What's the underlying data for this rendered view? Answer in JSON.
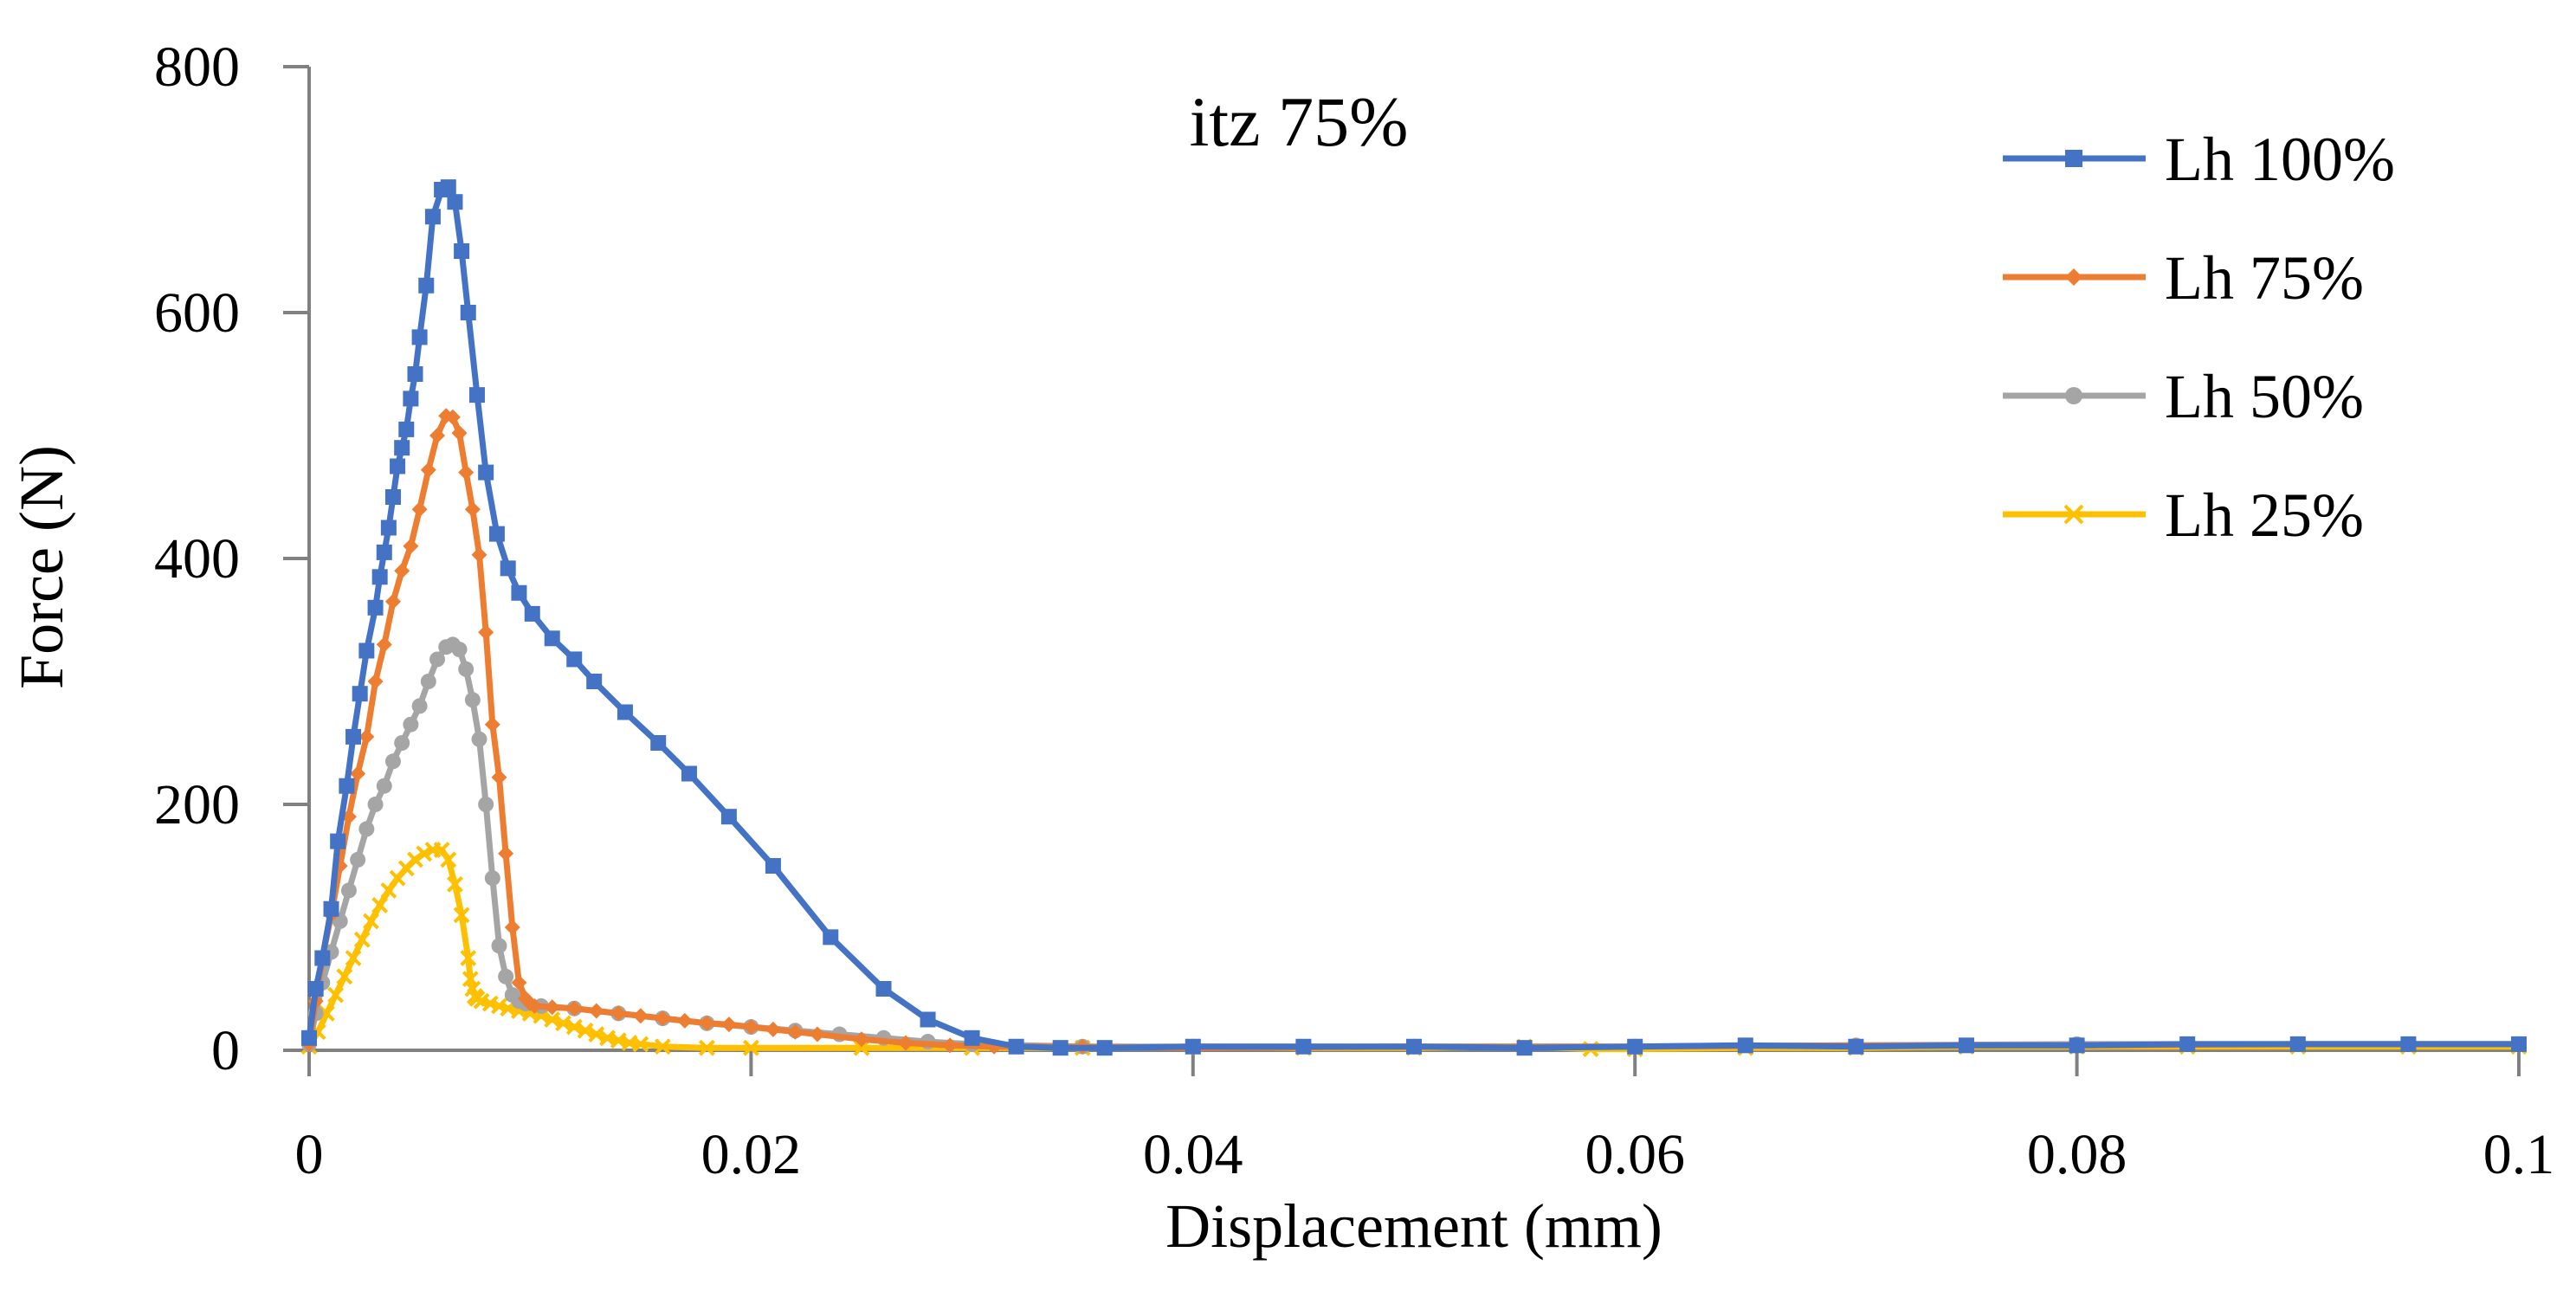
{
  "chart_data": {
    "type": "line",
    "title": "itz 75%",
    "xlabel": "Displacement (mm)",
    "ylabel": "Force (N)",
    "xlim": [
      0,
      0.1
    ],
    "ylim": [
      0,
      800
    ],
    "x_ticks": [
      0,
      0.02,
      0.04,
      0.06,
      0.08,
      0.1
    ],
    "x_tick_labels": [
      "0",
      "0.02",
      "0.04",
      "0.06",
      "0.08",
      "0.1"
    ],
    "y_ticks": [
      0,
      200,
      400,
      600,
      800
    ],
    "y_tick_labels": [
      "0",
      "200",
      "400",
      "600",
      "800"
    ],
    "grid": false,
    "legend_position": "top-right",
    "series": [
      {
        "name": "Lh 100%",
        "color": "#4472C4",
        "marker": "square",
        "x": [
          0,
          0.0003,
          0.0006,
          0.001,
          0.0013,
          0.0017,
          0.002,
          0.0023,
          0.0026,
          0.003,
          0.0032,
          0.0034,
          0.0036,
          0.0038,
          0.004,
          0.0042,
          0.0044,
          0.0046,
          0.0048,
          0.005,
          0.0053,
          0.0056,
          0.006,
          0.0063,
          0.0066,
          0.0069,
          0.0072,
          0.0076,
          0.008,
          0.0085,
          0.009,
          0.0095,
          0.0101,
          0.011,
          0.012,
          0.0129,
          0.0143,
          0.0158,
          0.0172,
          0.019,
          0.021,
          0.0236,
          0.026,
          0.028,
          0.03,
          0.032,
          0.034,
          0.036,
          0.04,
          0.045,
          0.05,
          0.055,
          0.06,
          0.065,
          0.07,
          0.075,
          0.08,
          0.085,
          0.09,
          0.095,
          0.1
        ],
        "y": [
          10,
          50,
          75,
          115,
          170,
          215,
          255,
          290,
          325,
          360,
          385,
          405,
          425,
          450,
          475,
          490,
          505,
          530,
          550,
          580,
          622,
          678,
          700,
          702,
          690,
          650,
          600,
          533,
          470,
          420,
          392,
          372,
          355,
          335,
          318,
          300,
          275,
          250,
          225,
          190,
          150,
          92,
          50,
          25,
          10,
          3,
          2,
          2,
          3,
          3,
          3,
          2,
          3,
          4,
          3,
          4,
          4,
          5,
          5,
          5,
          5
        ]
      },
      {
        "name": "Lh 75%",
        "color": "#ED7D31",
        "marker": "diamond",
        "x": [
          0,
          0.0003,
          0.0006,
          0.001,
          0.0014,
          0.0018,
          0.0022,
          0.0026,
          0.003,
          0.0034,
          0.0038,
          0.0042,
          0.0046,
          0.005,
          0.0054,
          0.0058,
          0.0062,
          0.0065,
          0.0068,
          0.0071,
          0.0074,
          0.0077,
          0.008,
          0.0083,
          0.0086,
          0.0089,
          0.0092,
          0.0095,
          0.0098,
          0.01,
          0.0102,
          0.011,
          0.012,
          0.013,
          0.014,
          0.015,
          0.016,
          0.017,
          0.018,
          0.019,
          0.02,
          0.021,
          0.022,
          0.023,
          0.025,
          0.027,
          0.029,
          0.031,
          0.035,
          0.04,
          0.05,
          0.06,
          0.07,
          0.08,
          0.09,
          0.1
        ],
        "y": [
          5,
          40,
          75,
          110,
          150,
          190,
          225,
          255,
          300,
          330,
          365,
          390,
          410,
          440,
          472,
          500,
          516,
          515,
          502,
          470,
          440,
          403,
          340,
          265,
          222,
          160,
          100,
          55,
          42,
          38,
          36,
          35,
          34,
          32,
          30,
          28,
          26,
          24,
          22,
          21,
          19,
          17,
          15,
          13,
          9,
          6,
          4,
          3,
          3,
          2,
          3,
          3,
          4,
          4,
          5,
          5
        ]
      },
      {
        "name": "Lh 50%",
        "color": "#A5A5A5",
        "marker": "circle",
        "x": [
          0,
          0.0003,
          0.0006,
          0.001,
          0.0014,
          0.0018,
          0.0022,
          0.0026,
          0.003,
          0.0034,
          0.0038,
          0.0042,
          0.0046,
          0.005,
          0.0054,
          0.0058,
          0.0062,
          0.0065,
          0.0068,
          0.0071,
          0.0074,
          0.0077,
          0.008,
          0.0083,
          0.0086,
          0.0089,
          0.0092,
          0.0095,
          0.0098,
          0.0105,
          0.012,
          0.014,
          0.016,
          0.018,
          0.02,
          0.022,
          0.024,
          0.026,
          0.028,
          0.03,
          0.035,
          0.04,
          0.05,
          0.06,
          0.07,
          0.08,
          0.09,
          0.1
        ],
        "y": [
          5,
          30,
          55,
          80,
          105,
          130,
          155,
          180,
          200,
          215,
          235,
          250,
          265,
          280,
          300,
          318,
          328,
          330,
          326,
          310,
          285,
          253,
          200,
          140,
          85,
          60,
          45,
          40,
          38,
          36,
          34,
          30,
          26,
          22,
          19,
          16,
          13,
          10,
          7,
          5,
          3,
          3,
          3,
          3,
          4,
          5,
          5,
          5
        ]
      },
      {
        "name": "Lh 25%",
        "color": "#FFC000",
        "marker": "x",
        "x": [
          0,
          0.0004,
          0.0008,
          0.0012,
          0.0016,
          0.002,
          0.0024,
          0.0028,
          0.0032,
          0.0036,
          0.004,
          0.0044,
          0.0048,
          0.0052,
          0.0056,
          0.006,
          0.0063,
          0.0066,
          0.0069,
          0.0072,
          0.0073,
          0.0074,
          0.0075,
          0.0076,
          0.0078,
          0.0082,
          0.0086,
          0.009,
          0.0095,
          0.01,
          0.0105,
          0.011,
          0.0115,
          0.012,
          0.0125,
          0.013,
          0.0135,
          0.014,
          0.0145,
          0.015,
          0.016,
          0.018,
          0.02,
          0.025,
          0.03,
          0.035,
          0.04,
          0.045,
          0.05,
          0.055,
          0.058,
          0.06,
          0.065,
          0.07,
          0.075,
          0.08,
          0.085,
          0.09,
          0.095,
          0.1
        ],
        "y": [
          3,
          15,
          30,
          45,
          60,
          75,
          90,
          105,
          118,
          130,
          140,
          148,
          155,
          160,
          163,
          163,
          155,
          135,
          110,
          75,
          58,
          50,
          44,
          42,
          40,
          38,
          36,
          34,
          32,
          30,
          28,
          25,
          22,
          19,
          16,
          13,
          10,
          8,
          6,
          5,
          3,
          2,
          2,
          2,
          2,
          2,
          3,
          2,
          2,
          3,
          1,
          1,
          2,
          2,
          3,
          3,
          3,
          3,
          3,
          3
        ]
      }
    ]
  }
}
